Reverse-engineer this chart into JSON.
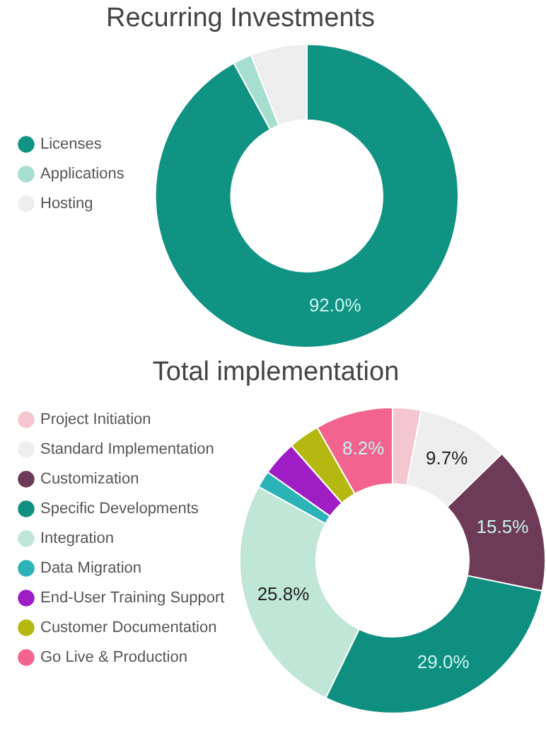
{
  "chart_data": [
    {
      "type": "donut",
      "title": "Recurring Investments",
      "categories": [
        "Licenses",
        "Applications",
        "Hosting"
      ],
      "values": [
        92.0,
        2.0,
        6.0
      ],
      "colors": [
        "#109383",
        "#a6dfcf",
        "#eeeeee"
      ],
      "value_labels": [
        "92.0%",
        null,
        null
      ],
      "legend": "left"
    },
    {
      "type": "donut",
      "title": "Total implementation",
      "categories": [
        "Project Initiation",
        "Standard Implementation",
        "Customization",
        "Specific Developments",
        "Integration",
        "Data Migration",
        "End-User Training Support",
        "Customer Documentation",
        "Go Live & Production"
      ],
      "values": [
        3.0,
        9.7,
        15.5,
        29.0,
        25.8,
        1.8,
        3.7,
        3.3,
        8.2
      ],
      "colors": [
        "#f4c7d0",
        "#eeeeee",
        "#6d3a57",
        "#0f8f80",
        "#bfe6d6",
        "#2bb3b8",
        "#9f1dc4",
        "#b6b812",
        "#f2638f"
      ],
      "value_labels": [
        null,
        "9.7%",
        "15.5%",
        "29.0%",
        "25.8%",
        null,
        null,
        null,
        "8.2%"
      ],
      "legend": "left"
    }
  ]
}
